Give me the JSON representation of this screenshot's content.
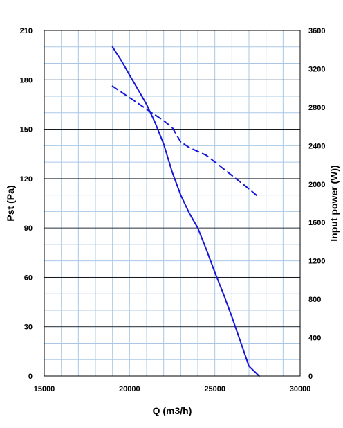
{
  "chart_data": {
    "type": "line",
    "title": "",
    "xlabel": "Q (m3/h)",
    "ylabel": "Pst (Pa)",
    "y2label": "Input power  (W))",
    "xlim": [
      15000,
      30000
    ],
    "ylim": [
      0,
      210
    ],
    "y2lim": [
      0,
      3600
    ],
    "xticks": [
      15000,
      20000,
      25000,
      30000
    ],
    "yticks": [
      0,
      30,
      60,
      90,
      120,
      150,
      180,
      210
    ],
    "y2ticks": [
      0,
      400,
      800,
      1200,
      1600,
      2000,
      2400,
      2800,
      3200,
      3600
    ],
    "grid": true,
    "colors": {
      "line": "#1515d9",
      "grid_minor": "#aac8e6",
      "grid_major": "#000000"
    },
    "series": [
      {
        "axis": "left",
        "style": "solid",
        "x": [
          19000,
          19500,
          20000,
          20500,
          21000,
          21500,
          22000,
          22500,
          23000,
          23500,
          24000,
          24500,
          25000,
          25500,
          26000,
          26500,
          27000,
          27600
        ],
        "values": [
          200,
          192,
          183,
          174,
          165,
          154,
          141,
          124,
          110,
          99,
          90,
          77,
          63,
          50,
          36,
          21,
          6,
          0
        ]
      },
      {
        "axis": "right",
        "style": "dashed",
        "x": [
          19000,
          19500,
          20000,
          20500,
          21000,
          21500,
          22000,
          22500,
          23000,
          23500,
          24000,
          24500,
          25000,
          25500,
          26000,
          26500,
          27000,
          27600
        ],
        "values": [
          3020,
          2960,
          2900,
          2840,
          2780,
          2720,
          2660,
          2590,
          2440,
          2380,
          2340,
          2300,
          2230,
          2160,
          2090,
          2020,
          1950,
          1860
        ]
      }
    ]
  }
}
